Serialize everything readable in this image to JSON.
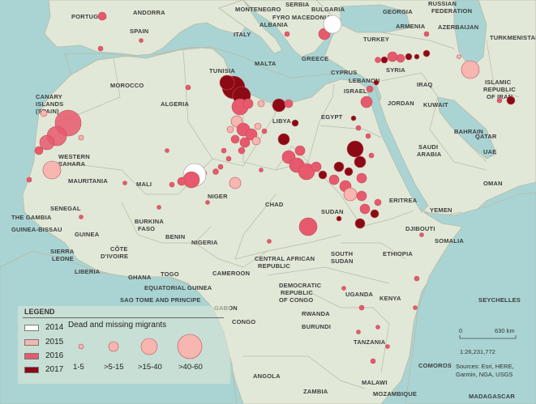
{
  "map": {
    "countries": [
      "PORTUGAL",
      "ANDORRA",
      "SPAIN",
      "ITALY",
      "MONTENEGRO",
      "SERBIA",
      "BULGARIA",
      "FYRO MACEDONIA",
      "ALBANIA",
      "GREECE",
      "MALTA",
      "TUNISIA",
      "MOROCCO",
      "ALGERIA",
      "CANARY",
      "ISLANDS",
      "(SPAIN)",
      "LIBYA",
      "EGYPT",
      "WESTERN",
      "SAHARA",
      "MAURITANIA",
      "MALI",
      "NIGER",
      "CHAD",
      "SUDAN",
      "SENEGAL",
      "THE GAMBIA",
      "GUINEA-BISSAU",
      "GUINEA",
      "SIERRA",
      "LEONE",
      "LIBERIA",
      "CÔTE",
      "D'IVOIRE",
      "BURKINA",
      "FASO",
      "GHANA",
      "TOGO",
      "BENIN",
      "NIGERIA",
      "CAMEROON",
      "EQUATORIAL GUINEA",
      "SAO TOME AND PRINCIPE",
      "GABON",
      "CONGO",
      "CENTRAL AFRICAN",
      "REPUBLIC",
      "SOUTH",
      "SUDAN",
      "DEMOCRATIC",
      "REPUBLIC",
      "OF CONGO",
      "UGANDA",
      "KENYA",
      "RWANDA",
      "BURUNDI",
      "TANZANIA",
      "ANGOLA",
      "ZAMBIA",
      "MALAWI",
      "MOZAMBIQUE",
      "COMOROS",
      "MADAGASCAR",
      "SEYCHELLES",
      "ETHIOPIA",
      "ERITREA",
      "DJIBOUTI",
      "SOMALIA",
      "YEMEN",
      "OMAN",
      "SAUDI",
      "ARABIA",
      "UAE",
      "QATAR",
      "BAHRAIN",
      "KUWAIT",
      "IRAQ",
      "JORDAN",
      "ISRAEL",
      "LEBANON",
      "SYRIA",
      "CYPRUS",
      "TURKEY",
      "GEORGIA",
      "ARMENIA",
      "AZERBAIJAN",
      "RUSSIAN",
      "FEDERATION",
      "TURKMENISTAN",
      "ISLAMIC",
      "REPUBLIC",
      "OF IRAN"
    ]
  },
  "legend": {
    "title": "LEGEND",
    "subtitle": "Dead and missing migrants",
    "years": [
      {
        "label": "2014",
        "color": "#ffffff"
      },
      {
        "label": "2015",
        "color": "#f7b6b0"
      },
      {
        "label": "2016",
        "color": "#e7596d"
      },
      {
        "label": "2017",
        "color": "#8b0a14"
      }
    ],
    "sizes": [
      "1-5",
      ">5-15",
      ">15-40",
      ">40-60"
    ]
  },
  "scale": {
    "zero": "0",
    "distance": "630 km",
    "ratio": "1:26,231,772"
  },
  "sources": "Sources: Esri, HERE, Garmin, NGA, USGS",
  "colors": {
    "sea": "#a9d4d3",
    "land": "#e1e8d7",
    "border": "#b9b9a7",
    "c2014": "#ffffff",
    "c2015": "#f7b6b0",
    "c2016": "#e7596d",
    "c2017": "#8b0a14"
  }
}
